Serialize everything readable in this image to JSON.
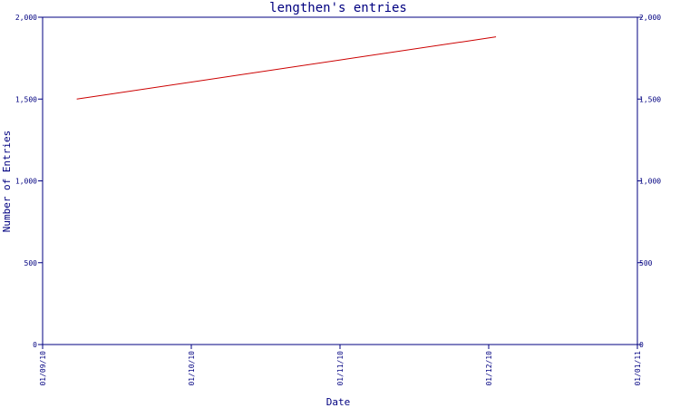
{
  "chart_data": {
    "type": "line",
    "title": "lengthen's entries",
    "xlabel": "Date",
    "ylabel": "Number of Entries",
    "ylim": [
      0,
      2000
    ],
    "xlim": [
      "2010-09-01",
      "2011-01-01"
    ],
    "x_ticks": [
      "01/09/10",
      "01/10/10",
      "01/11/10",
      "01/12/10",
      "01/01/11"
    ],
    "y_ticks": [
      "0",
      "500",
      "1,000",
      "1,500",
      "2,000"
    ],
    "y_tick_values": [
      0,
      500,
      1000,
      1500,
      2000
    ],
    "right_y_ticks": [
      "0",
      "500",
      "1,000",
      "1,500",
      "2,000"
    ],
    "grid": false,
    "colors": {
      "axis": "#000080",
      "line": "#cc0000",
      "background": "#ffffff"
    },
    "series": [
      {
        "x": [
          "2010-09-08",
          "2010-12-03"
        ],
        "values": [
          1500,
          1880
        ]
      }
    ]
  }
}
